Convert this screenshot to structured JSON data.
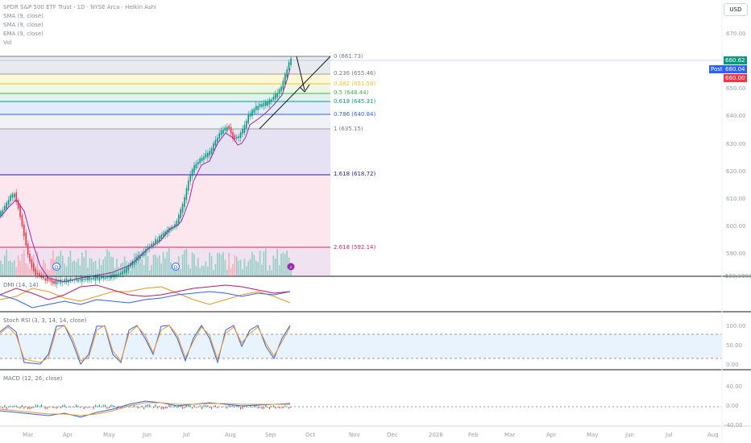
{
  "header": {
    "title": "SPDR S&P 500 ETF Trust · 1D · NYSE Arca · Heikin Ashi"
  },
  "legend": [
    "SMA (9, close)",
    "SMA (9, close)",
    "EMA (9, close)",
    "Vol"
  ],
  "currency_button": "USD",
  "price_axis": [
    "670.00",
    "650.00",
    "640.00",
    "630.00",
    "620.00",
    "610.00",
    "600.00",
    "590.00",
    "580.0000"
  ],
  "fib_levels": [
    {
      "label": "0 (661.73)",
      "color": "#787b86"
    },
    {
      "label": "0.236 (655.46)",
      "color": "#787b86"
    },
    {
      "label": "0.382 (651.58)",
      "color": "#fbc02d"
    },
    {
      "label": "0.5 (648.44)",
      "color": "#4caf50"
    },
    {
      "label": "0.618 (645.31)",
      "color": "#089981"
    },
    {
      "label": "0.786 (640.84)",
      "color": "#2962ff"
    },
    {
      "label": "1 (635.15)",
      "color": "#787b86"
    },
    {
      "label": "1.618 (618.72)",
      "color": "#311b92"
    },
    {
      "label": "2.618 (592.14)",
      "color": "#e91e63"
    }
  ],
  "price_tags": {
    "last": "660.62",
    "post_label": "Post",
    "post": "660.04",
    "ask": "660.00"
  },
  "indicators": {
    "dmi": {
      "title": "DMI (14, 14)"
    },
    "stoch": {
      "title": "Stoch RSI (3, 3, 14, 14, close)",
      "axis": [
        "100.00",
        "50.00",
        "0.00"
      ]
    },
    "macd": {
      "title": "MACD (12, 26, close)",
      "axis": [
        "40.00",
        "0.00",
        "-40.00"
      ]
    }
  },
  "time_axis": [
    "Mar",
    "Apr",
    "May",
    "Jun",
    "Jul",
    "Aug",
    "Sep",
    "Oct",
    "Nov",
    "Dec",
    "2026",
    "Feb",
    "Mar",
    "Apr",
    "May",
    "Jun",
    "Jul",
    "Aug"
  ],
  "colors": {
    "up": "#089981",
    "down": "#f23645",
    "post_tag": "#2962ff",
    "ask_tag": "#f23645",
    "last_tag": "#089981"
  }
}
